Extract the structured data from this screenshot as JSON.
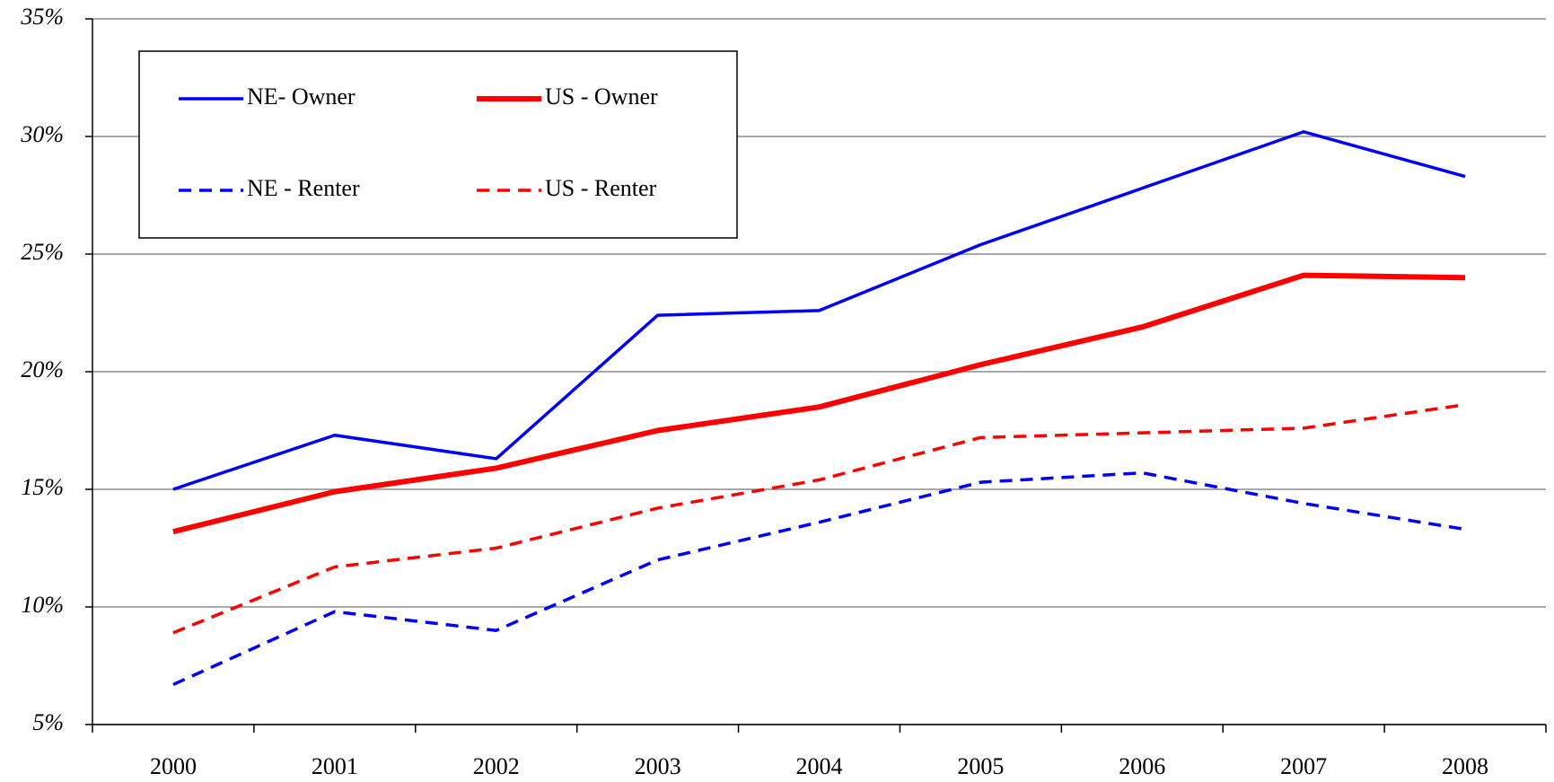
{
  "chart_data": {
    "type": "line",
    "categories": [
      "2000",
      "2001",
      "2002",
      "2003",
      "2004",
      "2005",
      "2006",
      "2007",
      "2008"
    ],
    "series": [
      {
        "name": "NE- Owner",
        "color": "#0000ff",
        "dashed": false,
        "line_width": 3.5,
        "values": [
          15.0,
          17.3,
          16.3,
          22.4,
          22.6,
          25.4,
          27.8,
          30.2,
          28.3
        ]
      },
      {
        "name": "US - Owner",
        "color": "#ff0000",
        "dashed": false,
        "line_width": 6,
        "values": [
          13.2,
          14.9,
          15.9,
          17.5,
          18.5,
          20.3,
          21.9,
          24.1,
          24.0
        ]
      },
      {
        "name": "NE - Renter",
        "color": "#0000ff",
        "dashed": true,
        "line_width": 3.5,
        "values": [
          6.7,
          9.8,
          9.0,
          12.0,
          13.6,
          15.3,
          15.7,
          14.4,
          13.3
        ]
      },
      {
        "name": "US - Renter",
        "color": "#ff0000",
        "dashed": true,
        "line_width": 3.5,
        "values": [
          8.9,
          11.7,
          12.5,
          14.2,
          15.4,
          17.2,
          17.4,
          17.6,
          18.6
        ]
      }
    ],
    "ylim": [
      5,
      35
    ],
    "yticks": [
      {
        "value": 5,
        "label": "5%"
      },
      {
        "value": 10,
        "label": "10%"
      },
      {
        "value": 15,
        "label": "15%"
      },
      {
        "value": 20,
        "label": "20%"
      },
      {
        "value": 25,
        "label": "25%"
      },
      {
        "value": 30,
        "label": "30%"
      },
      {
        "value": 35,
        "label": "35%"
      }
    ],
    "grid": true,
    "legend": "top-left"
  }
}
